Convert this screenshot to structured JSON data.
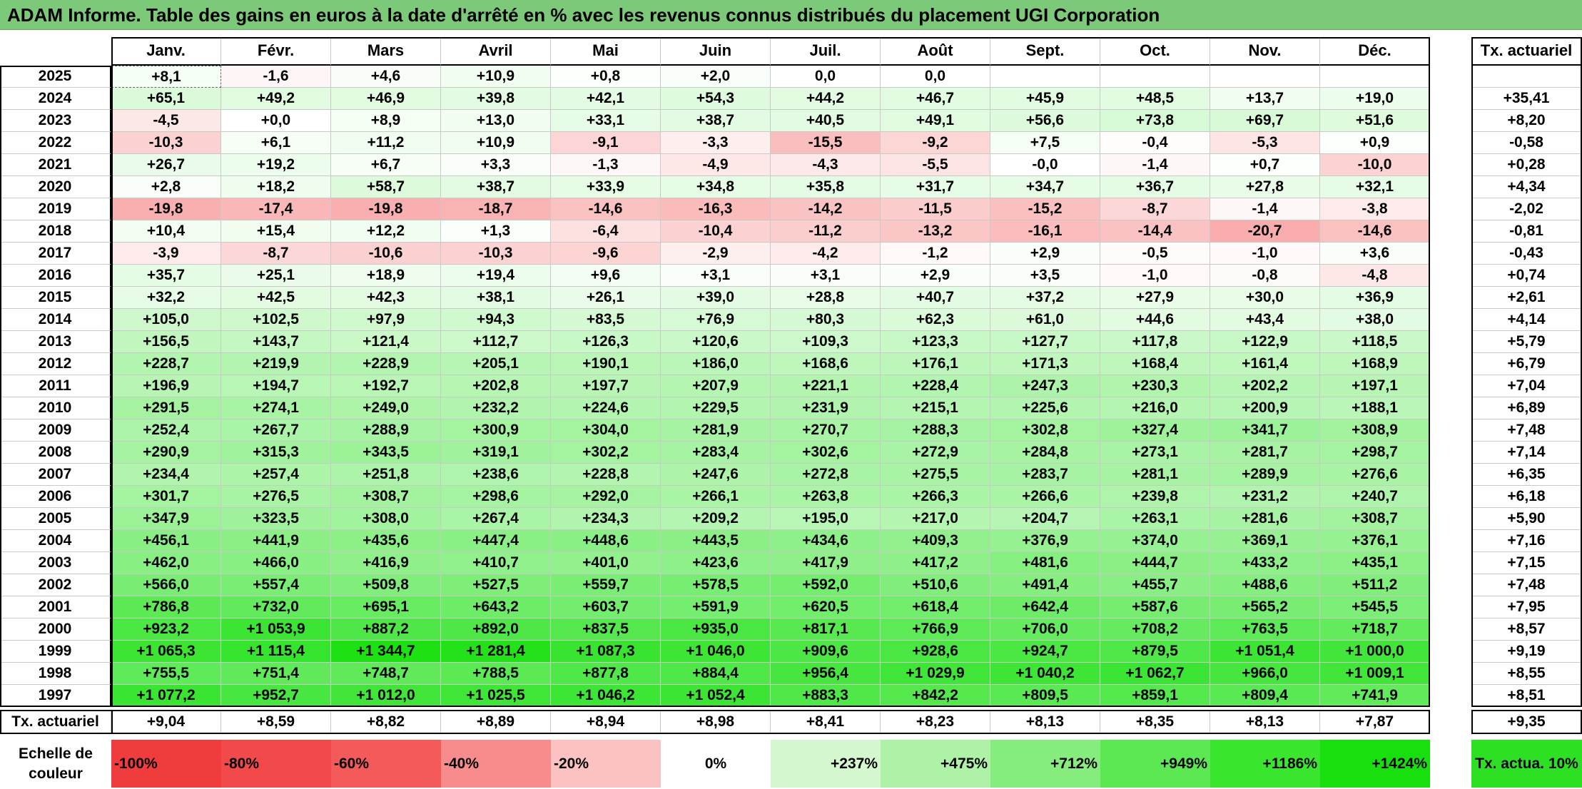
{
  "title": "ADAM Informe. Table des gains en euros à la date d'arrêté en % avec les revenus connus distribués du placement UGI Corporation",
  "chart_data": {
    "type": "table",
    "months": [
      "Janv.",
      "Févr.",
      "Mars",
      "Avril",
      "Mai",
      "Juin",
      "Juil.",
      "Août",
      "Sept.",
      "Oct.",
      "Nov.",
      "Déc."
    ],
    "rate_header": "Tx. actuariel",
    "rows": [
      {
        "year": "2025",
        "values": [
          "+8,1",
          "-1,6",
          "+4,6",
          "+10,9",
          "+0,8",
          "+2,0",
          "0,0",
          "0,0",
          "",
          "",
          "",
          ""
        ],
        "rate": ""
      },
      {
        "year": "2024",
        "values": [
          "+65,1",
          "+49,2",
          "+46,9",
          "+39,8",
          "+42,1",
          "+54,3",
          "+44,2",
          "+46,7",
          "+45,9",
          "+48,5",
          "+13,7",
          "+19,0"
        ],
        "rate": "+35,41"
      },
      {
        "year": "2023",
        "values": [
          "-4,5",
          "+0,0",
          "+8,9",
          "+13,0",
          "+33,1",
          "+38,7",
          "+40,5",
          "+49,1",
          "+56,6",
          "+73,8",
          "+69,7",
          "+51,6"
        ],
        "rate": "+8,20"
      },
      {
        "year": "2022",
        "values": [
          "-10,3",
          "+6,1",
          "+11,2",
          "+10,9",
          "-9,1",
          "-3,3",
          "-15,5",
          "-9,2",
          "+7,5",
          "-0,4",
          "-5,3",
          "+0,9"
        ],
        "rate": "-0,58"
      },
      {
        "year": "2021",
        "values": [
          "+26,7",
          "+19,2",
          "+6,7",
          "+3,3",
          "-1,3",
          "-4,9",
          "-4,3",
          "-5,5",
          "-0,0",
          "-1,4",
          "+0,7",
          "-10,0"
        ],
        "rate": "+0,28"
      },
      {
        "year": "2020",
        "values": [
          "+2,8",
          "+18,2",
          "+58,7",
          "+38,7",
          "+33,9",
          "+34,8",
          "+35,8",
          "+31,7",
          "+34,7",
          "+36,7",
          "+27,8",
          "+32,1"
        ],
        "rate": "+4,34"
      },
      {
        "year": "2019",
        "values": [
          "-19,8",
          "-17,4",
          "-19,8",
          "-18,7",
          "-14,6",
          "-16,3",
          "-14,2",
          "-11,5",
          "-15,2",
          "-8,7",
          "-1,4",
          "-3,8"
        ],
        "rate": "-2,02"
      },
      {
        "year": "2018",
        "values": [
          "+10,4",
          "+15,4",
          "+12,2",
          "+1,3",
          "-6,4",
          "-10,4",
          "-11,2",
          "-13,2",
          "-16,1",
          "-14,4",
          "-20,7",
          "-14,6"
        ],
        "rate": "-0,81"
      },
      {
        "year": "2017",
        "values": [
          "-3,9",
          "-8,7",
          "-10,6",
          "-10,3",
          "-9,6",
          "-2,9",
          "-4,2",
          "-1,2",
          "+2,9",
          "-0,5",
          "-1,0",
          "+3,6"
        ],
        "rate": "-0,43"
      },
      {
        "year": "2016",
        "values": [
          "+35,7",
          "+25,1",
          "+18,9",
          "+19,4",
          "+9,6",
          "+3,1",
          "+3,1",
          "+2,9",
          "+3,5",
          "-1,0",
          "-0,8",
          "-4,8"
        ],
        "rate": "+0,74"
      },
      {
        "year": "2015",
        "values": [
          "+32,2",
          "+42,5",
          "+42,3",
          "+38,1",
          "+26,1",
          "+39,0",
          "+28,8",
          "+40,7",
          "+37,2",
          "+27,9",
          "+30,0",
          "+36,9"
        ],
        "rate": "+2,61"
      },
      {
        "year": "2014",
        "values": [
          "+105,0",
          "+102,5",
          "+97,9",
          "+94,3",
          "+83,5",
          "+76,9",
          "+80,3",
          "+62,3",
          "+61,0",
          "+44,6",
          "+43,4",
          "+38,0"
        ],
        "rate": "+4,14"
      },
      {
        "year": "2013",
        "values": [
          "+156,5",
          "+143,7",
          "+121,4",
          "+112,7",
          "+126,3",
          "+120,6",
          "+109,3",
          "+123,3",
          "+127,7",
          "+117,8",
          "+122,9",
          "+118,5"
        ],
        "rate": "+5,79"
      },
      {
        "year": "2012",
        "values": [
          "+228,7",
          "+219,9",
          "+228,9",
          "+205,1",
          "+190,1",
          "+186,0",
          "+168,6",
          "+176,1",
          "+171,3",
          "+168,4",
          "+161,4",
          "+168,9"
        ],
        "rate": "+6,79"
      },
      {
        "year": "2011",
        "values": [
          "+196,9",
          "+194,7",
          "+192,7",
          "+202,8",
          "+197,7",
          "+207,9",
          "+221,1",
          "+228,4",
          "+247,3",
          "+230,3",
          "+202,2",
          "+197,1"
        ],
        "rate": "+7,04"
      },
      {
        "year": "2010",
        "values": [
          "+291,5",
          "+274,1",
          "+249,0",
          "+232,2",
          "+224,6",
          "+229,5",
          "+231,9",
          "+215,1",
          "+225,6",
          "+216,0",
          "+200,9",
          "+188,1"
        ],
        "rate": "+6,89"
      },
      {
        "year": "2009",
        "values": [
          "+252,4",
          "+267,7",
          "+288,9",
          "+300,9",
          "+304,0",
          "+281,9",
          "+270,7",
          "+288,3",
          "+302,8",
          "+327,4",
          "+341,7",
          "+308,9"
        ],
        "rate": "+7,48"
      },
      {
        "year": "2008",
        "values": [
          "+290,9",
          "+315,3",
          "+343,5",
          "+319,1",
          "+302,2",
          "+283,4",
          "+302,6",
          "+272,9",
          "+284,8",
          "+273,1",
          "+281,7",
          "+298,7"
        ],
        "rate": "+7,14"
      },
      {
        "year": "2007",
        "values": [
          "+234,4",
          "+257,4",
          "+251,8",
          "+238,6",
          "+228,8",
          "+247,6",
          "+272,8",
          "+275,5",
          "+283,7",
          "+281,1",
          "+289,9",
          "+276,6"
        ],
        "rate": "+6,35"
      },
      {
        "year": "2006",
        "values": [
          "+301,7",
          "+276,5",
          "+308,7",
          "+298,6",
          "+292,0",
          "+266,1",
          "+263,8",
          "+266,3",
          "+266,6",
          "+239,8",
          "+231,2",
          "+240,7"
        ],
        "rate": "+6,18"
      },
      {
        "year": "2005",
        "values": [
          "+347,9",
          "+323,5",
          "+308,0",
          "+267,4",
          "+234,3",
          "+209,2",
          "+195,0",
          "+217,0",
          "+204,7",
          "+263,1",
          "+281,6",
          "+308,7"
        ],
        "rate": "+5,90"
      },
      {
        "year": "2004",
        "values": [
          "+456,1",
          "+441,9",
          "+435,6",
          "+447,4",
          "+448,6",
          "+443,5",
          "+434,6",
          "+409,3",
          "+376,9",
          "+374,0",
          "+369,1",
          "+376,1"
        ],
        "rate": "+7,16"
      },
      {
        "year": "2003",
        "values": [
          "+462,0",
          "+466,0",
          "+416,9",
          "+410,7",
          "+401,0",
          "+423,6",
          "+417,9",
          "+417,2",
          "+481,6",
          "+444,7",
          "+433,2",
          "+435,1"
        ],
        "rate": "+7,15"
      },
      {
        "year": "2002",
        "values": [
          "+566,0",
          "+557,4",
          "+509,8",
          "+527,5",
          "+559,7",
          "+578,5",
          "+592,0",
          "+510,6",
          "+491,4",
          "+455,7",
          "+488,6",
          "+511,2"
        ],
        "rate": "+7,48"
      },
      {
        "year": "2001",
        "values": [
          "+786,8",
          "+732,0",
          "+695,1",
          "+643,2",
          "+603,7",
          "+591,9",
          "+620,5",
          "+618,4",
          "+642,4",
          "+587,6",
          "+565,2",
          "+545,5"
        ],
        "rate": "+7,95"
      },
      {
        "year": "2000",
        "values": [
          "+923,2",
          "+1 053,9",
          "+887,2",
          "+892,0",
          "+837,5",
          "+935,0",
          "+817,1",
          "+766,9",
          "+706,0",
          "+708,2",
          "+763,5",
          "+718,7"
        ],
        "rate": "+8,57"
      },
      {
        "year": "1999",
        "values": [
          "+1 065,3",
          "+1 115,4",
          "+1 344,7",
          "+1 281,4",
          "+1 087,3",
          "+1 046,0",
          "+909,6",
          "+928,6",
          "+924,7",
          "+879,5",
          "+1 051,4",
          "+1 000,0"
        ],
        "rate": "+9,19"
      },
      {
        "year": "1998",
        "values": [
          "+755,5",
          "+751,4",
          "+748,7",
          "+788,5",
          "+877,8",
          "+884,4",
          "+956,4",
          "+1 029,9",
          "+1 040,2",
          "+1 062,7",
          "+966,0",
          "+1 009,1"
        ],
        "rate": "+8,55"
      },
      {
        "year": "1997",
        "values": [
          "+1 077,2",
          "+952,7",
          "+1 012,0",
          "+1 025,5",
          "+1 046,2",
          "+1 052,4",
          "+883,3",
          "+842,2",
          "+809,5",
          "+859,1",
          "+809,4",
          "+741,9"
        ],
        "rate": "+8,51"
      }
    ],
    "footer": {
      "label": "Tx. actuariel",
      "values": [
        "+9,04",
        "+8,59",
        "+8,82",
        "+8,89",
        "+8,94",
        "+8,98",
        "+8,41",
        "+8,23",
        "+8,13",
        "+8,35",
        "+8,13",
        "+7,87"
      ],
      "rate": "+9,35"
    },
    "color_scale": {
      "label": "Echelle de couleur",
      "steps": [
        {
          "label": "-100%",
          "color": "#f03c3c"
        },
        {
          "label": "-80%",
          "color": "#f24a4a"
        },
        {
          "label": "-60%",
          "color": "#f45a5a"
        },
        {
          "label": "-40%",
          "color": "#f88c8c"
        },
        {
          "label": "-20%",
          "color": "#fcc2c2"
        },
        {
          "label": "0%",
          "color": "#ffffff"
        },
        {
          "label": "+237%",
          "color": "#d4f7d0"
        },
        {
          "label": "+475%",
          "color": "#aef2a8"
        },
        {
          "label": "+712%",
          "color": "#86ec7e"
        },
        {
          "label": "+949%",
          "color": "#5ce852"
        },
        {
          "label": "+1186%",
          "color": "#3ae52e"
        },
        {
          "label": "+1424%",
          "color": "#18e00e"
        }
      ],
      "rate_label": "Tx. actua. 10%",
      "rate_color": "#2ee024"
    }
  }
}
